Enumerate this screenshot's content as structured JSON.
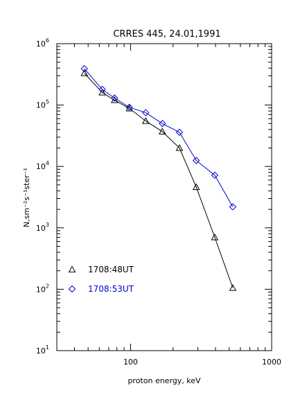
{
  "chart_data": {
    "type": "line",
    "title": "CRRES 445, 24.01,1991",
    "xlabel": "proton energy, keV",
    "ylabel": "N,sm⁻²s⁻¹ster⁻¹",
    "xscale": "log",
    "yscale": "log",
    "xlim": [
      30,
      1000
    ],
    "ylim": [
      10,
      1000000
    ],
    "x_ticks": [
      {
        "value": 100,
        "label": "100"
      },
      {
        "value": 1000,
        "label": "1000"
      }
    ],
    "y_ticks": [
      {
        "value": 10,
        "base": "10",
        "exp": "1"
      },
      {
        "value": 100,
        "base": "10",
        "exp": "2"
      },
      {
        "value": 1000,
        "base": "10",
        "exp": "3"
      },
      {
        "value": 10000,
        "base": "10",
        "exp": "4"
      },
      {
        "value": 100000,
        "base": "10",
        "exp": "5"
      },
      {
        "value": 1000000,
        "base": "10",
        "exp": "6"
      }
    ],
    "grid": false,
    "legend_position": "bottom-left",
    "series": [
      {
        "name": "1708:48UT",
        "color": "#000000",
        "marker": "triangle",
        "x": [
          47,
          63,
          77,
          98,
          128,
          168,
          222,
          292,
          395,
          530
        ],
        "y": [
          330000,
          160000,
          120000,
          88000,
          55000,
          37000,
          20000,
          4600,
          700,
          105
        ]
      },
      {
        "name": "1708:53UT",
        "color": "#0000cc",
        "marker": "diamond",
        "x": [
          47,
          63,
          77,
          98,
          128,
          168,
          222,
          292,
          395,
          530
        ],
        "y": [
          390000,
          180000,
          130000,
          92000,
          75000,
          50000,
          36000,
          12500,
          7200,
          2200
        ]
      }
    ]
  }
}
